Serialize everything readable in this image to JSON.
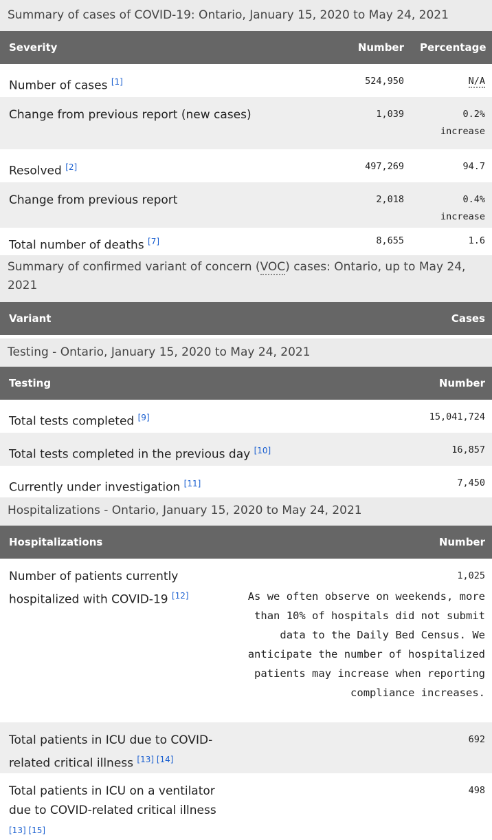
{
  "cases": {
    "caption": "Summary of cases of COVID-19: Ontario, January 15, 2020 to May 24, 2021",
    "headers": [
      "Severity",
      "Number",
      "Percentage"
    ],
    "rows": [
      {
        "label": "Number of cases",
        "ref": "[1]",
        "number": "524,950",
        "pct": "N/A",
        "pct2": ""
      },
      {
        "label": "Change from previous report (new cases)",
        "ref": "",
        "number": "1,039",
        "pct": "0.2%",
        "pct2": "increase"
      },
      {
        "label": "Resolved",
        "ref": "[2]",
        "number": "497,269",
        "pct": "94.7",
        "pct2": ""
      },
      {
        "label": "Change from previous report",
        "ref": "",
        "number": "2,018",
        "pct": "0.4%",
        "pct2": "increase"
      },
      {
        "label": "Total number of deaths",
        "ref": "[7]",
        "number": "8,655",
        "pct": "1.6",
        "pct2": ""
      }
    ]
  },
  "voc": {
    "caption_pre": "Summary of confirmed variant of concern (",
    "caption_abbr": "VOC",
    "caption_post": ") cases: Ontario, up to May 24, 2021",
    "headers": [
      "Variant",
      "Cases"
    ]
  },
  "testing": {
    "caption": "Testing - Ontario, January 15, 2020 to May 24, 2021",
    "headers": [
      "Testing",
      "Number"
    ],
    "rows": [
      {
        "label": "Total tests completed",
        "ref": "[9]",
        "number": "15,041,724"
      },
      {
        "label": "Total tests completed in the previous day",
        "ref": "[10]",
        "number": "16,857"
      },
      {
        "label": "Currently under investigation",
        "ref": "[11]",
        "number": "7,450"
      }
    ]
  },
  "hosp": {
    "caption": "Hospitalizations - Ontario, January 15, 2020 to May 24, 2021",
    "headers": [
      "Hospitalizations",
      "Number"
    ],
    "rows": [
      {
        "label": "Number of patients currently hospitalized with COVID-19",
        "ref": "[12]",
        "number": "1,025",
        "note": "As we often observe on weekends, more than 10% of hospitals did not submit data to the Daily Bed Census. We anticipate the number of hospitalized patients may increase when reporting compliance increases."
      },
      {
        "label": "Total patients in ICU due to COVID-related critical illness",
        "ref": "[13] [14]",
        "number": "692"
      },
      {
        "label": "Total patients in ICU on a ventilator due to COVID-related critical illness",
        "ref": "[13] [15]",
        "number": "498"
      }
    ]
  }
}
